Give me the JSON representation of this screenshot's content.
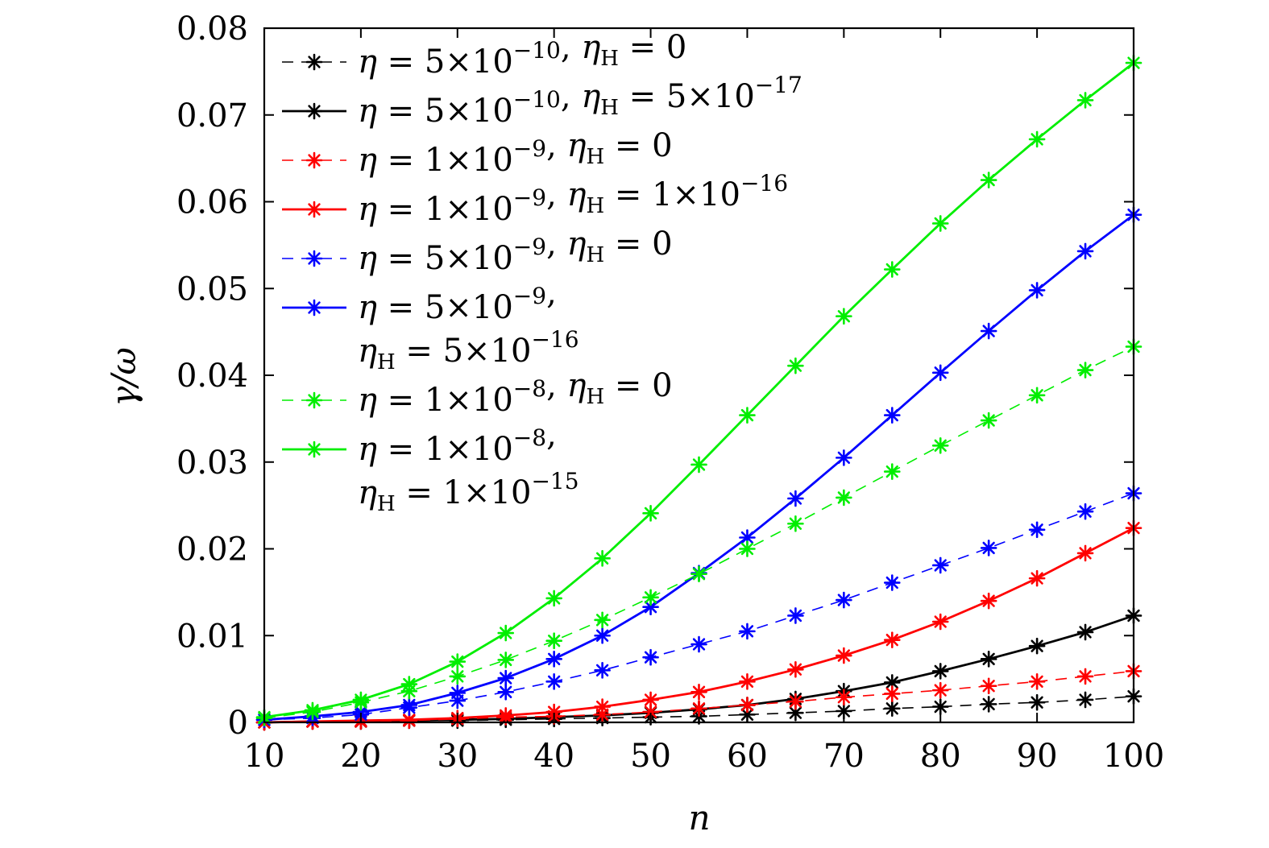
{
  "chart_data": {
    "type": "line",
    "xlabel": "n",
    "ylabel": "γ/ω",
    "xlim": [
      10,
      100
    ],
    "ylim": [
      0,
      0.08
    ],
    "x_ticks": [
      "10",
      "20",
      "30",
      "40",
      "50",
      "60",
      "70",
      "80",
      "90",
      "100"
    ],
    "y_ticks": [
      "0",
      "0.01",
      "0.02",
      "0.03",
      "0.04",
      "0.05",
      "0.06",
      "0.07",
      "0.08"
    ],
    "grid": false,
    "legend_position": "top-left",
    "x": [
      10,
      15,
      20,
      25,
      30,
      35,
      40,
      45,
      50,
      55,
      60,
      65,
      70,
      75,
      80,
      85,
      90,
      95,
      100
    ],
    "series": [
      {
        "name": "η = 5×10⁻¹⁰, ηH = 0",
        "legend": {
          "eta_mant": "5",
          "eta_exp": "−10",
          "h_mant": "",
          "h_exp": "",
          "wrap": false
        },
        "color": "#000000",
        "dashed": true,
        "values": [
          0.0,
          0.0001,
          0.0001,
          0.0002,
          0.0002,
          0.0003,
          0.0004,
          0.0005,
          0.0006,
          0.0007,
          0.0009,
          0.0011,
          0.0013,
          0.0016,
          0.0018,
          0.0021,
          0.0023,
          0.0026,
          0.003
        ]
      },
      {
        "name": "η = 5×10⁻¹⁰, ηH = 5×10⁻¹⁷",
        "legend": {
          "eta_mant": "5",
          "eta_exp": "−10",
          "h_mant": "5",
          "h_exp": "−17",
          "wrap": false
        },
        "color": "#000000",
        "dashed": false,
        "values": [
          0.0,
          0.0001,
          0.0001,
          0.0002,
          0.0003,
          0.0004,
          0.0006,
          0.0008,
          0.0011,
          0.0015,
          0.002,
          0.0027,
          0.0036,
          0.0046,
          0.0059,
          0.0073,
          0.0088,
          0.0104,
          0.0123
        ]
      },
      {
        "name": "η = 1×10⁻⁹, ηH = 0",
        "legend": {
          "eta_mant": "1",
          "eta_exp": "−9",
          "h_mant": "",
          "h_exp": "",
          "wrap": false
        },
        "color": "#ff0000",
        "dashed": true,
        "values": [
          0.0,
          0.0001,
          0.0001,
          0.0002,
          0.0004,
          0.0006,
          0.0007,
          0.0009,
          0.0012,
          0.0016,
          0.002,
          0.0024,
          0.0029,
          0.0033,
          0.0037,
          0.0042,
          0.0047,
          0.0053,
          0.0059
        ]
      },
      {
        "name": "η = 1×10⁻⁹, ηH = 1×10⁻¹⁶",
        "legend": {
          "eta_mant": "1",
          "eta_exp": "−9",
          "h_mant": "1",
          "h_exp": "−16",
          "wrap": false
        },
        "color": "#ff0000",
        "dashed": false,
        "values": [
          0.0,
          0.0001,
          0.0002,
          0.0003,
          0.0005,
          0.0008,
          0.0012,
          0.0018,
          0.0026,
          0.0035,
          0.0047,
          0.0061,
          0.0077,
          0.0095,
          0.0116,
          0.014,
          0.0166,
          0.0195,
          0.0224
        ]
      },
      {
        "name": "η = 5×10⁻⁹, ηH = 0",
        "legend": {
          "eta_mant": "5",
          "eta_exp": "−9",
          "h_mant": "",
          "h_exp": "",
          "wrap": false
        },
        "color": "#0000ff",
        "dashed": true,
        "values": [
          0.0003,
          0.0005,
          0.0009,
          0.0017,
          0.0025,
          0.0035,
          0.0047,
          0.006,
          0.0075,
          0.009,
          0.0105,
          0.0123,
          0.0141,
          0.0161,
          0.0181,
          0.0201,
          0.0222,
          0.0243,
          0.0264
        ]
      },
      {
        "name": "η = 5×10⁻⁹, ηH = 5×10⁻¹⁶",
        "legend": {
          "eta_mant": "5",
          "eta_exp": "−9",
          "h_mant": "5",
          "h_exp": "−16",
          "wrap": true
        },
        "color": "#0000ff",
        "dashed": false,
        "values": [
          0.0003,
          0.0007,
          0.0012,
          0.002,
          0.0034,
          0.0051,
          0.0073,
          0.01,
          0.0133,
          0.0172,
          0.0213,
          0.0258,
          0.0305,
          0.0354,
          0.0403,
          0.0451,
          0.0498,
          0.0543,
          0.0585
        ]
      },
      {
        "name": "η = 1×10⁻⁸, ηH = 0",
        "legend": {
          "eta_mant": "1",
          "eta_exp": "−8",
          "h_mant": "",
          "h_exp": "",
          "wrap": false
        },
        "color": "#00ee00",
        "dashed": true,
        "values": [
          0.0005,
          0.0012,
          0.0023,
          0.0036,
          0.0053,
          0.0072,
          0.0094,
          0.0118,
          0.0144,
          0.0171,
          0.02,
          0.0229,
          0.0259,
          0.0289,
          0.0319,
          0.0348,
          0.0377,
          0.0406,
          0.0433
        ]
      },
      {
        "name": "η = 1×10⁻⁸, ηH = 1×10⁻¹⁵",
        "legend": {
          "eta_mant": "1",
          "eta_exp": "−8",
          "h_mant": "1",
          "h_exp": "−15",
          "wrap": true
        },
        "color": "#00ee00",
        "dashed": false,
        "values": [
          0.0006,
          0.0014,
          0.0026,
          0.0044,
          0.007,
          0.0103,
          0.0143,
          0.0189,
          0.0241,
          0.0297,
          0.0354,
          0.0411,
          0.0468,
          0.0522,
          0.0575,
          0.0625,
          0.0672,
          0.0717,
          0.076
        ]
      }
    ]
  }
}
